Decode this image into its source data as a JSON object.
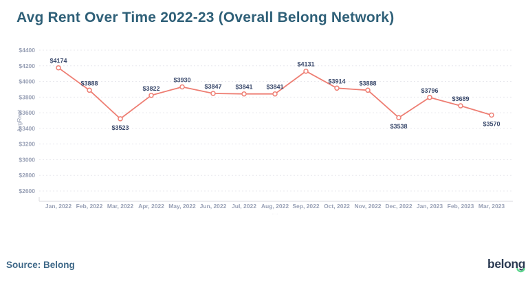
{
  "title": "Avg Rent Over Time 2022-23 (Overall Belong Network)",
  "footer": {
    "source": "Source: Belong",
    "logo_text": "belong"
  },
  "colors": {
    "title": "#2f6078",
    "source_text": "#3d6787",
    "logo_navy": "#2b3a52",
    "logo_smile_green": "#5fd68f"
  },
  "chart_data": {
    "type": "line",
    "title": "Avg Rent Over Time 2022-23 (Overall Belong Network)",
    "xlabel": "",
    "ylabel": "AvgRent",
    "categories": [
      "Jan, 2022",
      "Feb, 2022",
      "Mar, 2022",
      "Apr, 2022",
      "May, 2022",
      "Jun, 2022",
      "Jul, 2022",
      "Aug, 2022",
      "Sep, 2022",
      "Oct, 2022",
      "Nov, 2022",
      "Dec, 2022",
      "Jan, 2023",
      "Feb, 2023",
      "Mar, 2023"
    ],
    "values": [
      4174,
      3888,
      3523,
      3822,
      3930,
      3847,
      3841,
      3841,
      4131,
      3914,
      3888,
      3538,
      3796,
      3689,
      3570
    ],
    "data_labels": [
      "$4174",
      "$3888",
      "$3523",
      "$3822",
      "$3930",
      "$3847",
      "$3841",
      "$3841",
      "$4131",
      "$3914",
      "$3888",
      "$3538",
      "$3796",
      "$3689",
      "$3570"
    ],
    "value_prefix": "$",
    "ylim": [
      2600,
      4400
    ],
    "ytick_step": 200,
    "ytick_labels": [
      "$2600",
      "$2800",
      "$3000",
      "$3200",
      "$3400",
      "$3600",
      "$3800",
      "$4000",
      "$4200",
      "$4400"
    ],
    "grid": "horizontal-dashed",
    "legend": "none",
    "x_axis_note": "··  ··",
    "line_color": "#ee7e73",
    "marker": "open-circle",
    "data_label_color": "#3c4b6d",
    "tick_label_color": "#99a1b6",
    "grid_color": "#e8e8ed",
    "axis_line_color": "#d8d8dd",
    "labels_below_indices": [
      2,
      11,
      14
    ]
  }
}
